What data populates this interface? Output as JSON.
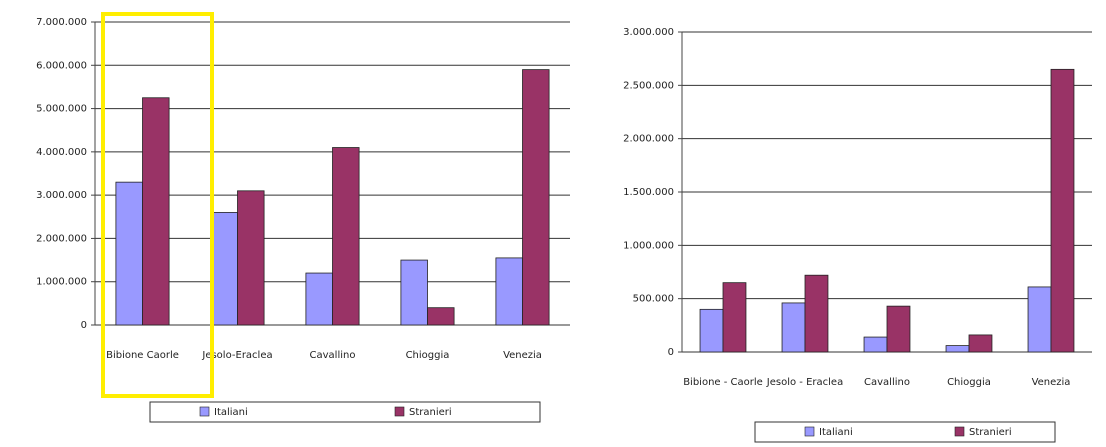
{
  "chart_data": [
    {
      "type": "bar",
      "categories": [
        "Bibione Caorle",
        "Jesolo-Eraclea",
        "Cavallino",
        "Chioggia",
        "Venezia"
      ],
      "series": [
        {
          "name": "Italiani",
          "color": "#9999ff",
          "values": [
            3300000,
            2600000,
            1200000,
            1500000,
            1550000
          ]
        },
        {
          "name": "Stranieri",
          "color": "#993366",
          "values": [
            5250000,
            3100000,
            4100000,
            400000,
            5900000
          ]
        }
      ],
      "ylim": [
        0,
        7000000
      ],
      "yticks": [
        0,
        {
          "value": 1000000,
          "label": "1.000.000"
        },
        {
          "value": 2000000,
          "label": "2.000.000"
        },
        {
          "value": 3000000,
          "label": "3.000.000"
        },
        {
          "value": 4000000,
          "label": "4.000.000"
        },
        {
          "value": 5000000,
          "label": "5.000.000"
        },
        {
          "value": 6000000,
          "label": "6.000.000"
        },
        {
          "value": 7000000,
          "label": "7.000.000"
        }
      ],
      "grid": true,
      "legend": "bottom"
    },
    {
      "type": "bar",
      "categories": [
        "Bibione - Caorle",
        "Jesolo - Eraclea",
        "Cavallino",
        "Chioggia",
        "Venezia"
      ],
      "series": [
        {
          "name": "Italiani",
          "color": "#9999ff",
          "values": [
            400000,
            460000,
            140000,
            60000,
            610000
          ]
        },
        {
          "name": "Stranieri",
          "color": "#993366",
          "values": [
            650000,
            720000,
            430000,
            160000,
            2650000
          ]
        }
      ],
      "ylim": [
        0,
        3000000
      ],
      "yticks": [
        0,
        {
          "value": 500000,
          "label": "500.000"
        },
        {
          "value": 1000000,
          "label": "1.000.000"
        },
        {
          "value": 1500000,
          "label": "1.500.000"
        },
        {
          "value": 2000000,
          "label": "2.000.000"
        },
        {
          "value": 2500000,
          "label": "2.500.000"
        },
        {
          "value": 3000000,
          "label": "3.000.000"
        }
      ],
      "grid": true,
      "legend": "bottom"
    }
  ]
}
